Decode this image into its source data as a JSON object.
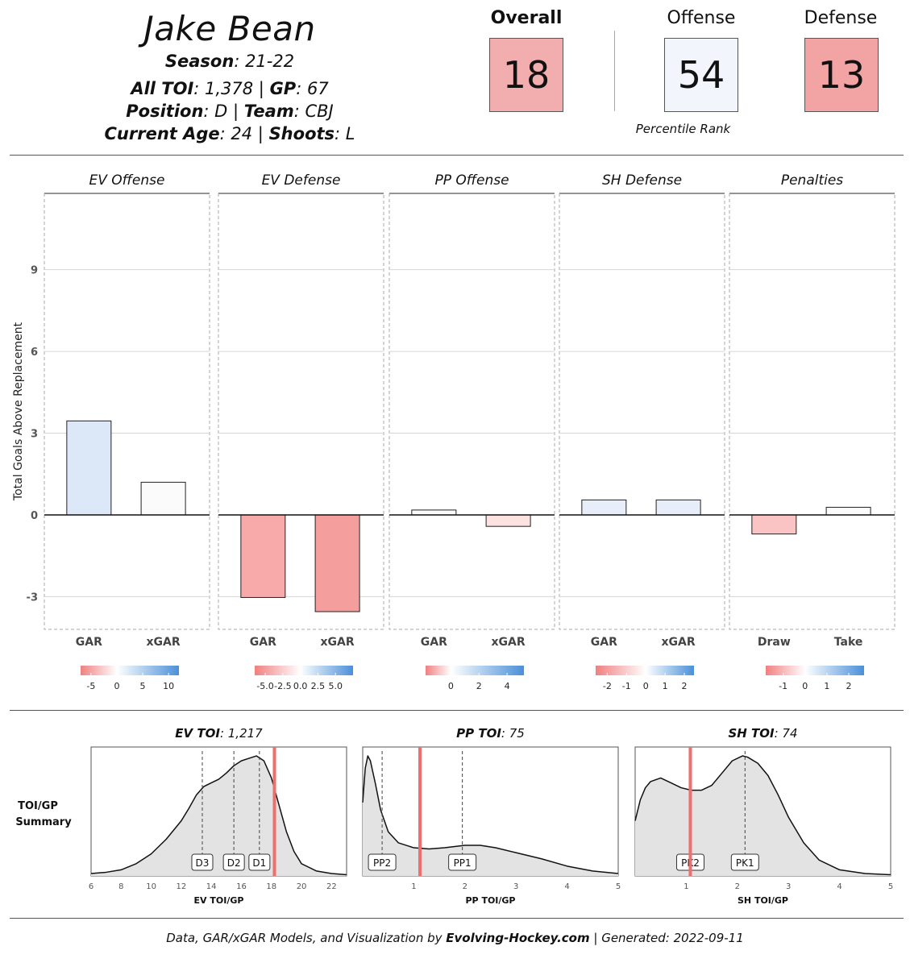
{
  "header": {
    "player_name": "Jake Bean",
    "season_label": "Season",
    "season_value": ": 21-22",
    "toi_label": "All TOI",
    "toi_value": ": 1,378 | ",
    "gp_label": "GP",
    "gp_value": ": 67",
    "position_label": "Position",
    "position_value": ": D | ",
    "team_label": "Team",
    "team_value": ": CBJ",
    "age_label": "Current Age",
    "age_value": ": 24 | ",
    "shoots_label": "Shoots",
    "shoots_value": ": L"
  },
  "ranks": {
    "overall_label": "Overall",
    "overall_value": "18",
    "overall_color": "#f2aeae",
    "offense_label": "Offense",
    "offense_value": "54",
    "offense_color": "#f2f5fb",
    "defense_label": "Defense",
    "defense_value": "13",
    "defense_color": "#f2a3a3",
    "caption": "Percentile Rank"
  },
  "footer": {
    "prefix": "Data, GAR/xGAR Models, and Visualization by ",
    "brand": "Evolving-Hockey.com",
    "suffix": " | Generated: 2022-09-11"
  },
  "chart_data": [
    {
      "type": "bar",
      "ylabel": "Total Goals Above Replacement",
      "ylim": [
        -4.2,
        11.8
      ],
      "yticks": [
        9,
        6,
        3,
        0,
        -3
      ],
      "ytick_labels": [
        "9",
        "6",
        "3",
        "0",
        "-3"
      ],
      "grid": true,
      "panels": [
        {
          "title": "EV Offense",
          "categories": [
            "GAR",
            "xGAR"
          ],
          "values": [
            3.45,
            1.2
          ],
          "colors": [
            "#dce8f7",
            "#fbfbfb"
          ],
          "legend": {
            "stops": [
              "#f08080",
              "#ffffff",
              "#4a90d9"
            ],
            "tick_values": [
              -5,
              0,
              5,
              10
            ],
            "tick_labels": [
              "-5",
              "0",
              "5",
              "10"
            ],
            "domain": [
              -7,
              12
            ]
          }
        },
        {
          "title": "EV Defense",
          "categories": [
            "GAR",
            "xGAR"
          ],
          "values": [
            -3.03,
            -3.55
          ],
          "colors": [
            "#f8aaaa",
            "#f59e9e"
          ],
          "legend": {
            "stops": [
              "#f08080",
              "#ffffff",
              "#4a90d9"
            ],
            "tick_values": [
              -5,
              -2.5,
              0,
              2.5,
              5
            ],
            "tick_labels": [
              "-5.0",
              "-2.5",
              "0.0",
              "2.5",
              "5.0"
            ],
            "domain": [
              -6.5,
              7.5
            ]
          }
        },
        {
          "title": "PP Offense",
          "categories": [
            "GAR",
            "xGAR"
          ],
          "values": [
            0.18,
            -0.42
          ],
          "colors": [
            "#fbfbfb",
            "#fde2e2"
          ],
          "legend": {
            "stops": [
              "#f08080",
              "#ffffff",
              "#4a90d9"
            ],
            "tick_values": [
              0,
              2,
              4
            ],
            "tick_labels": [
              "0",
              "2",
              "4"
            ],
            "domain": [
              -1.8,
              5.2
            ]
          }
        },
        {
          "title": "SH Defense",
          "categories": [
            "GAR",
            "xGAR"
          ],
          "values": [
            0.55,
            0.55
          ],
          "colors": [
            "#e8eef9",
            "#e8eef9"
          ],
          "legend": {
            "stops": [
              "#f08080",
              "#ffffff",
              "#4a90d9"
            ],
            "tick_values": [
              -2,
              -1,
              0,
              1,
              2
            ],
            "tick_labels": [
              "-2",
              "-1",
              "0",
              "1",
              "2"
            ],
            "domain": [
              -2.6,
              2.5
            ]
          }
        },
        {
          "title": "Penalties",
          "categories": [
            "Draw",
            "Take"
          ],
          "values": [
            -0.7,
            0.28
          ],
          "colors": [
            "#fbc4c4",
            "#fbfbfb"
          ],
          "legend": {
            "stops": [
              "#f08080",
              "#ffffff",
              "#4a90d9"
            ],
            "tick_values": [
              -1,
              0,
              1,
              2
            ],
            "tick_labels": [
              "-1",
              "0",
              "1",
              "2"
            ],
            "domain": [
              -1.8,
              2.7
            ]
          }
        }
      ]
    },
    {
      "type": "area",
      "row_label": [
        "TOI/GP",
        "Summary"
      ],
      "panels": [
        {
          "title_bold": "EV TOI",
          "title_rest": ": 1,217",
          "xlabel": "EV TOI/GP",
          "xlim": [
            6,
            23
          ],
          "xticks": [
            6,
            8,
            10,
            12,
            14,
            16,
            18,
            20,
            22
          ],
          "player_value": 18.2,
          "markers": [
            {
              "label": "D3",
              "x": 13.4
            },
            {
              "label": "D2",
              "x": 15.5
            },
            {
              "label": "D1",
              "x": 17.2
            }
          ],
          "density_x": [
            6,
            7,
            8,
            9,
            10,
            11,
            12,
            12.5,
            13,
            13.5,
            14,
            14.5,
            15,
            15.5,
            16,
            16.5,
            17,
            17.5,
            18,
            18.5,
            19,
            19.5,
            20,
            21,
            22,
            23
          ],
          "density_y": [
            0.02,
            0.03,
            0.05,
            0.1,
            0.18,
            0.3,
            0.45,
            0.55,
            0.66,
            0.73,
            0.76,
            0.79,
            0.84,
            0.9,
            0.94,
            0.96,
            0.98,
            0.94,
            0.8,
            0.58,
            0.36,
            0.2,
            0.1,
            0.04,
            0.02,
            0.01
          ]
        },
        {
          "title_bold": "PP TOI",
          "title_rest": ": 75",
          "xlabel": "PP TOI/GP",
          "xlim": [
            0,
            5
          ],
          "xticks": [
            1,
            2,
            3,
            4,
            5
          ],
          "player_value": 1.12,
          "markers": [
            {
              "label": "PP2",
              "x": 0.38
            },
            {
              "label": "PP1",
              "x": 1.95
            }
          ],
          "density_x": [
            0,
            0.05,
            0.1,
            0.15,
            0.25,
            0.35,
            0.5,
            0.7,
            1,
            1.3,
            1.6,
            2,
            2.3,
            2.6,
            3,
            3.5,
            4,
            4.5,
            5
          ],
          "density_y": [
            0.6,
            0.88,
            0.98,
            0.94,
            0.75,
            0.54,
            0.36,
            0.27,
            0.23,
            0.22,
            0.23,
            0.25,
            0.25,
            0.23,
            0.19,
            0.14,
            0.08,
            0.04,
            0.02
          ]
        },
        {
          "title_bold": "SH TOI",
          "title_rest": ": 74",
          "xlabel": "SH TOI/GP",
          "xlim": [
            0,
            5
          ],
          "xticks": [
            1,
            2,
            3,
            4,
            5
          ],
          "player_value": 1.08,
          "markers": [
            {
              "label": "PK2",
              "x": 1.08
            },
            {
              "label": "PK1",
              "x": 2.15
            }
          ],
          "density_x": [
            0,
            0.1,
            0.2,
            0.3,
            0.5,
            0.7,
            0.9,
            1.1,
            1.3,
            1.5,
            1.7,
            1.9,
            2.1,
            2.2,
            2.4,
            2.6,
            2.8,
            3,
            3.3,
            3.6,
            4,
            4.5,
            5
          ],
          "density_y": [
            0.45,
            0.62,
            0.72,
            0.77,
            0.8,
            0.76,
            0.72,
            0.7,
            0.7,
            0.74,
            0.84,
            0.94,
            0.98,
            0.97,
            0.92,
            0.82,
            0.66,
            0.48,
            0.27,
            0.13,
            0.05,
            0.02,
            0.01
          ]
        }
      ]
    }
  ]
}
